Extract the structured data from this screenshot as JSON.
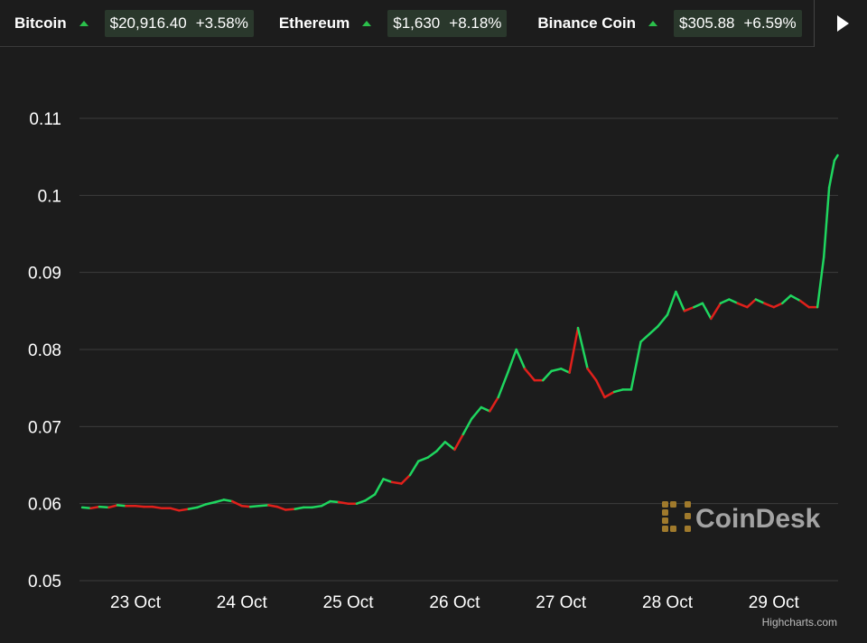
{
  "ticker": [
    {
      "name": "Bitcoin",
      "price": "$20,916.40",
      "change": "+3.58%"
    },
    {
      "name": "Ethereum",
      "price": "$1,630",
      "change": "+8.18%"
    },
    {
      "name": "Binance Coin",
      "price": "$305.88",
      "change": "+6.59%"
    }
  ],
  "colors": {
    "background": "#1c1c1c",
    "grid": "#3d3d3d",
    "up": "#1fd65f",
    "down": "#e0201b",
    "up_arrow": "#2bc04b",
    "watermark_logo": "#a07a2c"
  },
  "watermark": "CoinDesk",
  "credit": "Highcharts.com",
  "chart_data": {
    "type": "line",
    "title": "",
    "xlabel": "",
    "ylabel": "",
    "ylim": [
      0.05,
      0.114
    ],
    "yticks": [
      "0.05",
      "0.06",
      "0.07",
      "0.08",
      "0.09",
      "0.1",
      "0.11"
    ],
    "xticks": [
      "23 Oct",
      "24 Oct",
      "25 Oct",
      "26 Oct",
      "27 Oct",
      "28 Oct",
      "29 Oct"
    ],
    "xlim": [
      22.47,
      29.65
    ],
    "grid": true,
    "legend": "none",
    "x": [
      22.5,
      22.58,
      22.66,
      22.75,
      22.83,
      22.91,
      23.0,
      23.08,
      23.16,
      23.25,
      23.33,
      23.41,
      23.5,
      23.58,
      23.66,
      23.75,
      23.83,
      23.91,
      24.0,
      24.08,
      24.16,
      24.25,
      24.33,
      24.41,
      24.5,
      24.58,
      24.66,
      24.75,
      24.83,
      24.91,
      25.0,
      25.08,
      25.16,
      25.25,
      25.33,
      25.41,
      25.5,
      25.58,
      25.66,
      25.75,
      25.83,
      25.91,
      26.0,
      26.08,
      26.16,
      26.25,
      26.33,
      26.41,
      26.5,
      26.58,
      26.66,
      26.75,
      26.83,
      26.91,
      27.0,
      27.08,
      27.16,
      27.25,
      27.33,
      27.41,
      27.5,
      27.58,
      27.66,
      27.75,
      27.83,
      27.91,
      28.0,
      28.08,
      28.16,
      28.25,
      28.33,
      28.41,
      28.5,
      28.58,
      28.66,
      28.75,
      28.83,
      28.91,
      29.0,
      29.08,
      29.16,
      29.25,
      29.33,
      29.41,
      29.47,
      29.52,
      29.57,
      29.6
    ],
    "values": [
      0.0595,
      0.0594,
      0.0596,
      0.0595,
      0.0598,
      0.0597,
      0.0597,
      0.0596,
      0.0596,
      0.0594,
      0.0594,
      0.0591,
      0.0593,
      0.0595,
      0.0599,
      0.0602,
      0.0605,
      0.0603,
      0.0597,
      0.0596,
      0.0597,
      0.0598,
      0.0596,
      0.0592,
      0.0593,
      0.0595,
      0.0595,
      0.0597,
      0.0603,
      0.0602,
      0.06,
      0.06,
      0.0604,
      0.0612,
      0.0632,
      0.0628,
      0.0626,
      0.0637,
      0.0655,
      0.066,
      0.0668,
      0.068,
      0.067,
      0.069,
      0.071,
      0.0725,
      0.072,
      0.0738,
      0.077,
      0.08,
      0.0775,
      0.076,
      0.076,
      0.0772,
      0.0775,
      0.077,
      0.0828,
      0.0775,
      0.076,
      0.0738,
      0.0745,
      0.0748,
      0.0748,
      0.081,
      0.082,
      0.083,
      0.0845,
      0.0875,
      0.085,
      0.0855,
      0.086,
      0.084,
      0.086,
      0.0865,
      0.086,
      0.0855,
      0.0865,
      0.086,
      0.0855,
      0.086,
      0.087,
      0.0863,
      0.0855,
      0.0855,
      0.092,
      0.101,
      0.1045,
      0.1052
    ],
    "segment_colors": [
      "up",
      "down",
      "up",
      "down",
      "up",
      "down",
      "down",
      "down",
      "down",
      "down",
      "down",
      "down",
      "up",
      "up",
      "up",
      "up",
      "up",
      "down",
      "down",
      "up",
      "up",
      "down",
      "down",
      "down",
      "up",
      "up",
      "up",
      "up",
      "up",
      "down",
      "down",
      "up",
      "up",
      "up",
      "up",
      "down",
      "down",
      "up",
      "up",
      "up",
      "up",
      "up",
      "down",
      "up",
      "up",
      "up",
      "down",
      "up",
      "up",
      "up",
      "down",
      "down",
      "up",
      "up",
      "up",
      "down",
      "up",
      "down",
      "down",
      "down",
      "up",
      "up",
      "up",
      "up",
      "up",
      "up",
      "up",
      "up",
      "down",
      "up",
      "up",
      "down",
      "up",
      "up",
      "down",
      "down",
      "up",
      "down",
      "down",
      "up",
      "up",
      "down",
      "down",
      "up",
      "up",
      "up",
      "up"
    ]
  }
}
